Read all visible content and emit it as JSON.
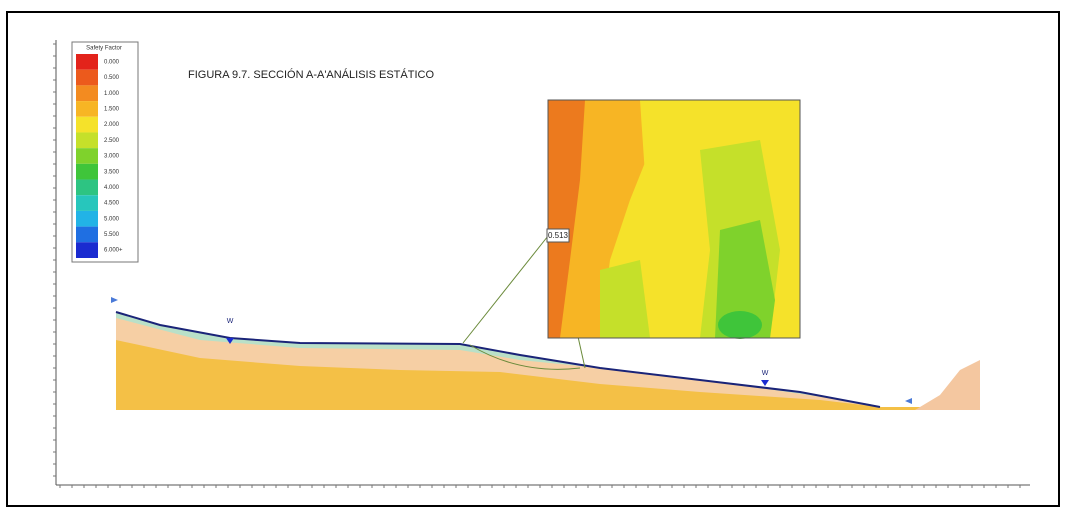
{
  "figure": {
    "title": "FIGURA 9.7. SECCIÓN A-A'ANÁLISIS ESTÁTICO",
    "legend": {
      "title": "Safety Factor",
      "items": [
        {
          "label": "0.000",
          "color": "#e3231b"
        },
        {
          "label": "0.500",
          "color": "#ec5a1c"
        },
        {
          "label": "1.000",
          "color": "#f38b20"
        },
        {
          "label": "1.500",
          "color": "#f7b524"
        },
        {
          "label": "2.000",
          "color": "#f5e22a"
        },
        {
          "label": "2.500",
          "color": "#c5e02a"
        },
        {
          "label": "3.000",
          "color": "#7fd22c"
        },
        {
          "label": "3.500",
          "color": "#3fc53a"
        },
        {
          "label": "4.000",
          "color": "#2dc482"
        },
        {
          "label": "4.500",
          "color": "#27c6bc"
        },
        {
          "label": "5.000",
          "color": "#22b3e6"
        },
        {
          "label": "5.500",
          "color": "#1f6fe2"
        },
        {
          "label": "6.000+",
          "color": "#1a2bd0"
        }
      ]
    },
    "minimum_factor_label": "0.513",
    "water_markers": [
      "W",
      "W"
    ]
  }
}
